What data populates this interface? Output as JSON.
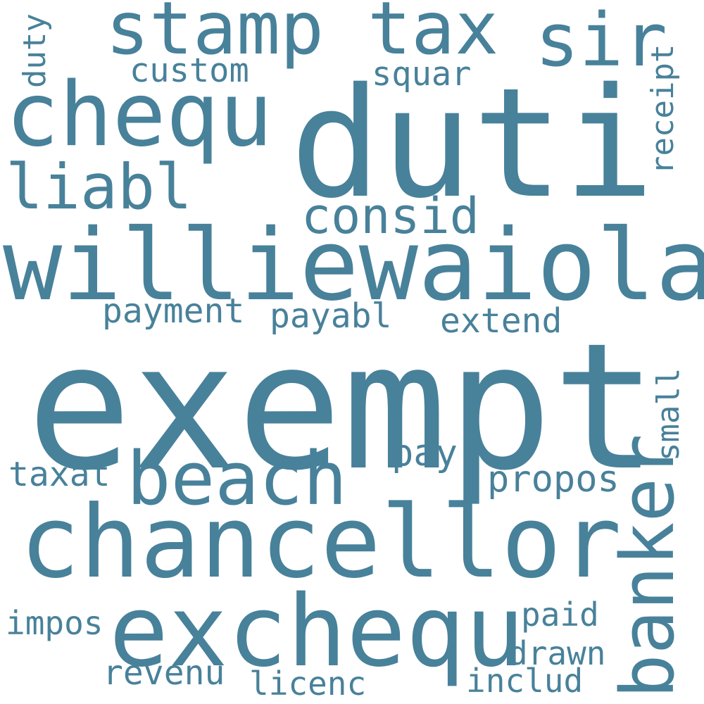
{
  "word_color": "#48819a",
  "background": "#ffffff",
  "words": {
    "exempt": "exempt",
    "duti": "duti",
    "williewaiola": "williewaiola",
    "chancellor": "chancellor",
    "stamp_tax": "stamp tax",
    "chequ": "chequ",
    "exchequ": "exchequ",
    "beach": "beach",
    "banker": "banker",
    "sir": "sir",
    "liabl": "liabl",
    "consid": "consid",
    "custom": "custom",
    "squar": "squar",
    "receipt": "receipt",
    "duty": "duty",
    "payment": "payment",
    "payabl": "payabl",
    "extend": "extend",
    "small": "small",
    "pay": "pay",
    "taxat": "taxat",
    "propos": "propos",
    "impos": "impos",
    "paid": "paid",
    "drawn": "drawn",
    "revenu": "revenu",
    "licenc": "licenc",
    "includ": "includ"
  }
}
